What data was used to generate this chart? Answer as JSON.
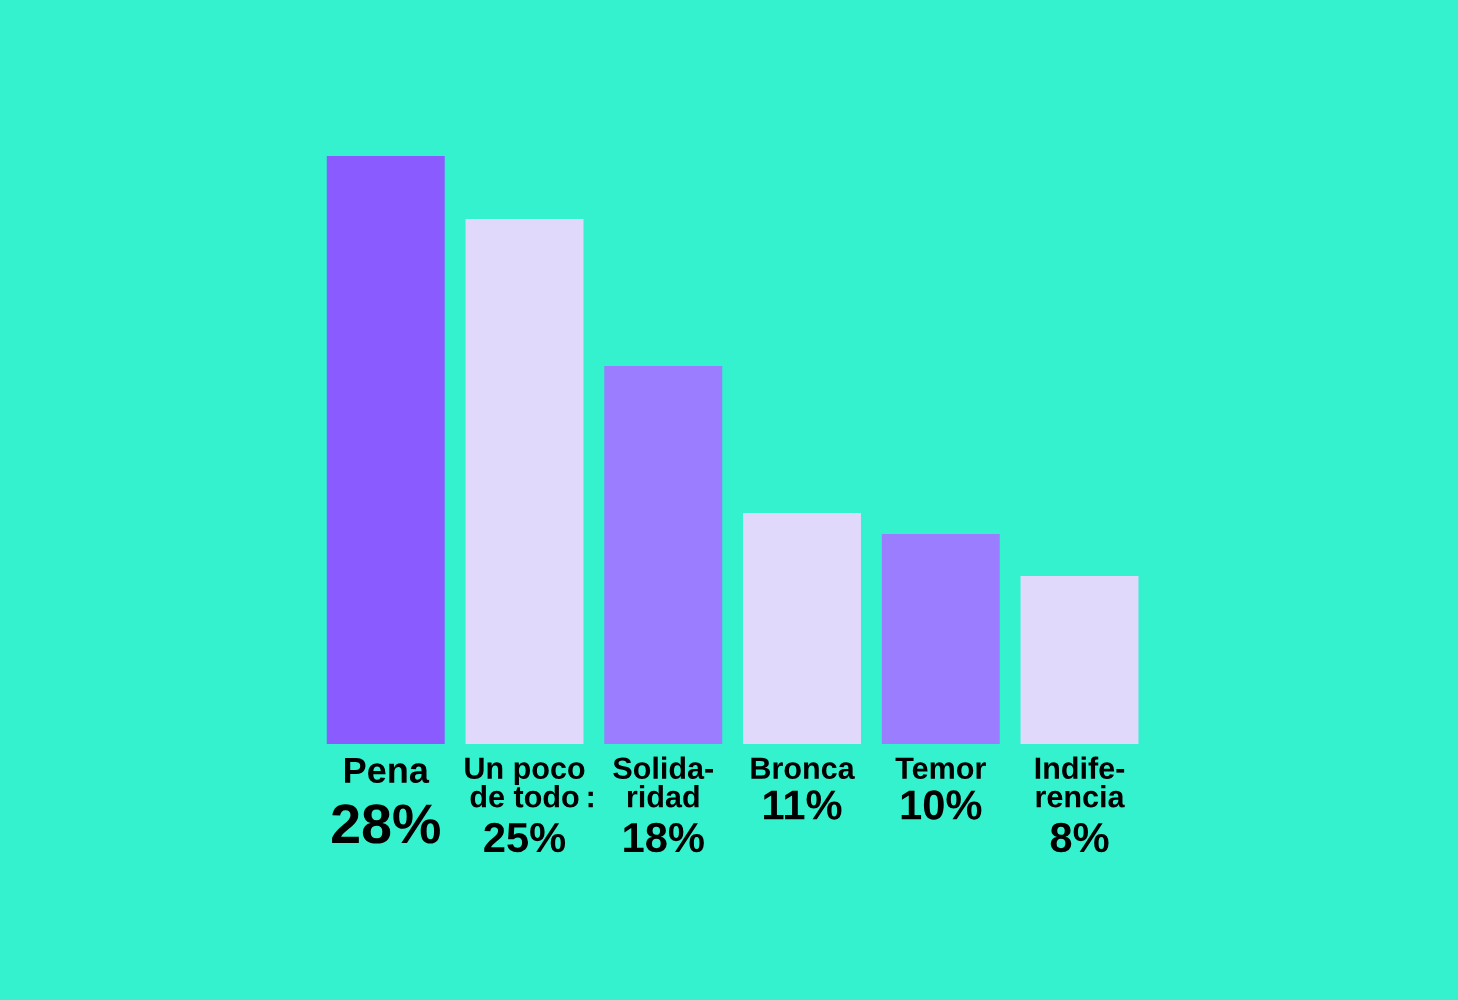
{
  "chart_data": {
    "type": "bar",
    "categories": [
      "Pena",
      "Un poco\nde todo",
      "Solida-\nridad",
      "Bronca",
      "Temor",
      "Indife-\nrencia"
    ],
    "values": [
      28,
      25,
      18,
      11,
      10,
      8
    ],
    "annotations": [
      ":"
    ],
    "value_labels": [
      "28%",
      "25%",
      "18%",
      "11%",
      "10%",
      "8%"
    ],
    "colors": [
      "#8a5cff",
      "#e0d9fc",
      "#9b7dff",
      "#e0d9fc",
      "#9b7dff",
      "#e0d9fc"
    ]
  }
}
